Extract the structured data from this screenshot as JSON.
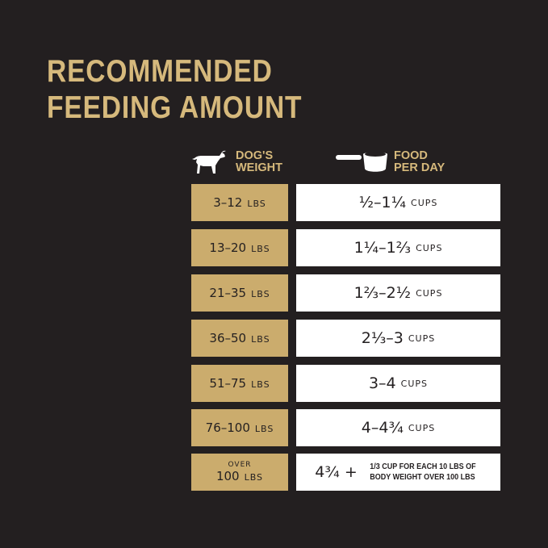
{
  "title": {
    "line1": "RECOMMENDED",
    "line2": "FEEDING AMOUNT"
  },
  "headers": {
    "weight": {
      "icon": "dog-icon",
      "line1": "DOG'S",
      "line2": "WEIGHT"
    },
    "food": {
      "icon": "measuring-cup-icon",
      "line1": "FOOD",
      "line2": "PER DAY"
    }
  },
  "rows": [
    {
      "weight": "3–12",
      "unit": "LBS",
      "amount": "½–1¼",
      "amount_unit": "CUPS"
    },
    {
      "weight": "13–20",
      "unit": "LBS",
      "amount": "1¼–1⅔",
      "amount_unit": "CUPS"
    },
    {
      "weight": "21–35",
      "unit": "LBS",
      "amount": "1⅔–2½",
      "amount_unit": "CUPS"
    },
    {
      "weight": "36–50",
      "unit": "LBS",
      "amount": "2⅓–3",
      "amount_unit": "CUPS"
    },
    {
      "weight": "51–75",
      "unit": "LBS",
      "amount": "3–4",
      "amount_unit": "CUPS"
    },
    {
      "weight": "76–100",
      "unit": "LBS",
      "amount": "4–4¾",
      "amount_unit": "CUPS"
    }
  ],
  "last_row": {
    "prefix": "OVER",
    "weight": "100",
    "unit": "LBS",
    "amount": "4¾ +",
    "note_line1": "1/3 CUP FOR EACH 10 LBS OF",
    "note_line2": "BODY WEIGHT OVER 100 LBS"
  },
  "colors": {
    "background": "#231f20",
    "gold": "#cbac6d",
    "title": "#d6b97c"
  }
}
